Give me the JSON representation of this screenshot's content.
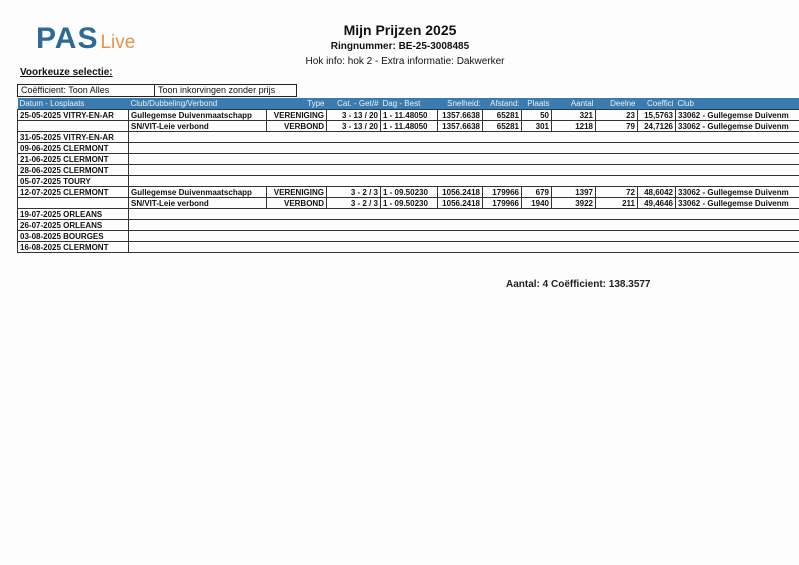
{
  "logo": {
    "main": "PAS",
    "sub": "Live"
  },
  "header": {
    "title": "Mijn Prijzen 2025",
    "ringnummer": "Ringnummer: BE-25-3008485",
    "hok_info": "Hok info: hok 2 - Extra informatie:   Dakwerker"
  },
  "selection": {
    "label": "Voorkeuze selectie:",
    "coefficient": "Coëfficient: Toon Alles",
    "option": "Toon inkorvingen zonder prijs"
  },
  "table": {
    "columns": [
      "Datum - Losplaats",
      "Club/Dubbeling/Verbond",
      "Type",
      "Cat. - Get/#",
      "Dag - Best",
      "Snelheid:",
      "Afstand:",
      "Plaats",
      "Aantal",
      "Deelne",
      "Coeffici",
      "Club"
    ],
    "rows": [
      [
        "25-05-2025 VITRY-EN-AR",
        "Gullegemse Duivenmaatschapp",
        "VERENIGING",
        "3 - 13 / 20",
        "1 - 11.48050",
        "1357.6638",
        "65281",
        "50",
        "321",
        "23",
        "15,5763",
        "33062 - Gullegemse Duivenm"
      ],
      [
        "",
        "SN/VIT-Leie verbond",
        "VERBOND",
        "3 - 13 / 20",
        "1 - 11.48050",
        "1357.6638",
        "65281",
        "301",
        "1218",
        "79",
        "24,7126",
        "33062 - Gullegemse Duivenm"
      ],
      [
        "31-05-2025 VITRY-EN-AR"
      ],
      [
        "09-06-2025 CLERMONT"
      ],
      [
        "21-06-2025 CLERMONT"
      ],
      [
        "28-06-2025 CLERMONT"
      ],
      [
        "05-07-2025 TOURY"
      ],
      [
        "12-07-2025 CLERMONT",
        "Gullegemse Duivenmaatschapp",
        "VERENIGING",
        "3 - 2 / 3",
        "1 - 09.50230",
        "1056.2418",
        "179966",
        "679",
        "1397",
        "72",
        "48,6042",
        "33062 - Gullegemse Duivenm"
      ],
      [
        "",
        "SN/VIT-Leie verbond",
        "VERBOND",
        "3 - 2 / 3",
        "1 - 09.50230",
        "1056.2418",
        "179966",
        "1940",
        "3922",
        "211",
        "49,4646",
        "33062 - Gullegemse Duivenm"
      ],
      [
        "19-07-2025 ORLEANS"
      ],
      [
        "26-07-2025 ORLEANS"
      ],
      [
        "03-08-2025 BOURGES"
      ],
      [
        "16-08-2025 CLERMONT"
      ]
    ]
  },
  "summary": "Aantal: 4 Coëfficient: 138.3577",
  "colors": {
    "header_bg": "#3a7cb0",
    "logo_blue": "#2e6a94",
    "logo_orange": "#e0954a"
  }
}
